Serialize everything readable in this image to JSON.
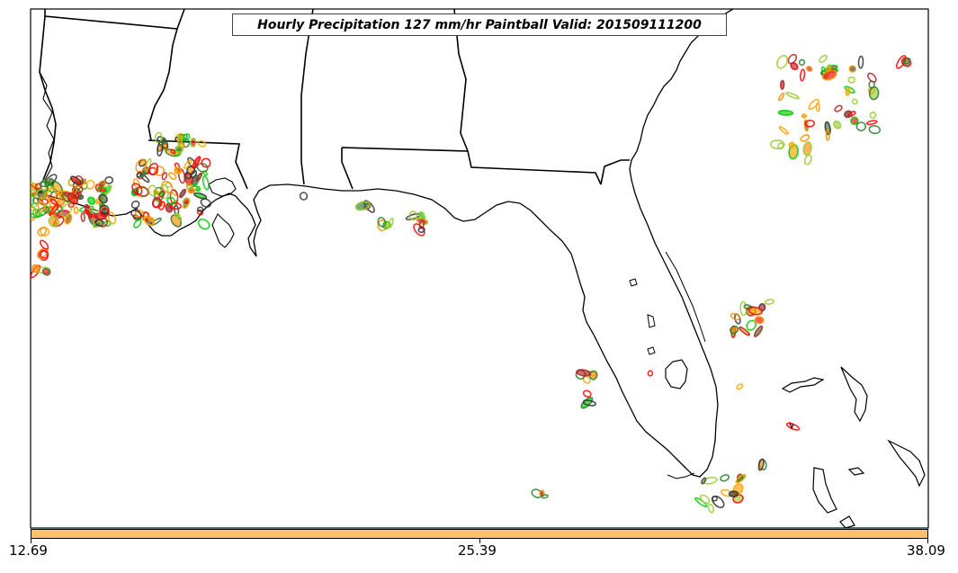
{
  "title": "Hourly Precipitation 127 mm/hr Paintball Valid: 201509111200",
  "colorbar": {
    "color": "#ffc266",
    "labels": [
      "12.69",
      "25.39",
      "38.09"
    ]
  },
  "map": {
    "region": "Southeastern United States and Gulf of Mexico",
    "boundary_color": "#000000",
    "paintball_colors": [
      "#ff0000",
      "#ff8c00",
      "#ffa500",
      "#00cc00",
      "#2e7d32",
      "#b22222",
      "#9acd32",
      "#333333"
    ]
  }
}
